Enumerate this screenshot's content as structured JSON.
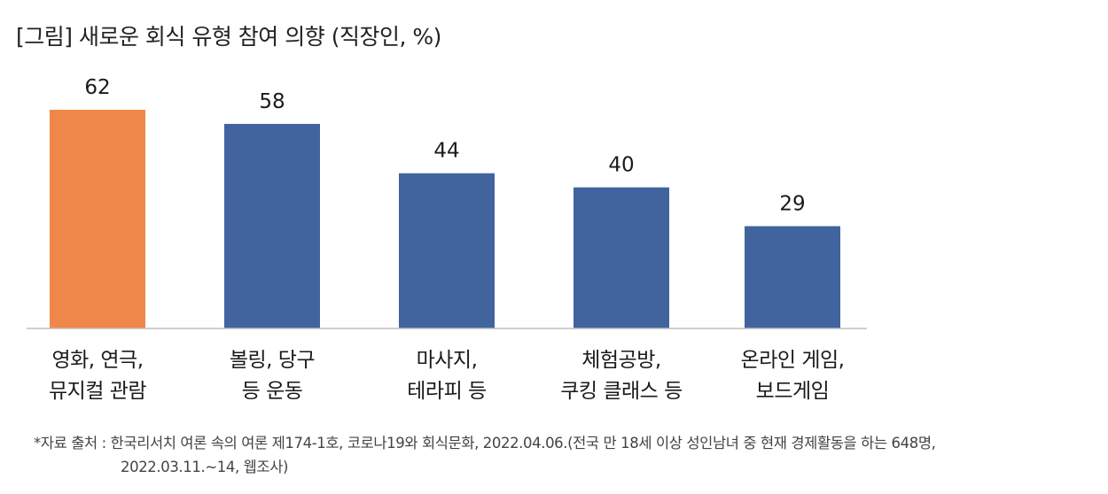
{
  "title": "[그림] 새로운 회식 유형 참여 의향 (직장인, %)",
  "chart_data": {
    "type": "bar",
    "title": "[그림] 새로운 회식 유형 참여 의향 (직장인, %)",
    "categories": [
      [
        "영화, 연극,",
        "뮤지컬 관람"
      ],
      [
        "볼링, 당구",
        "등 운동"
      ],
      [
        "마사지,",
        "테라피 등"
      ],
      [
        "체험공방,",
        "쿠킹 클래스 등"
      ],
      [
        "온라인 게임,",
        "보드게임"
      ]
    ],
    "values": [
      62,
      58,
      44,
      40,
      29
    ],
    "bar_colors": [
      "#F0874A",
      "#41649E",
      "#41649E",
      "#41649E",
      "#41649E"
    ],
    "ylim": [
      0,
      100
    ],
    "grid": false,
    "xlabel": "",
    "ylabel": ""
  },
  "footnote": {
    "line1": "*자료 출처 : 한국리서치 여론 속의 여론 제174-1호, 코로나19와 회식문화, 2022.04.06.(전국 만 18세 이상 성인남녀 중 현재 경제활동을 하는 648명,",
    "line2": "2022.03.11.~14, 웹조사)"
  }
}
